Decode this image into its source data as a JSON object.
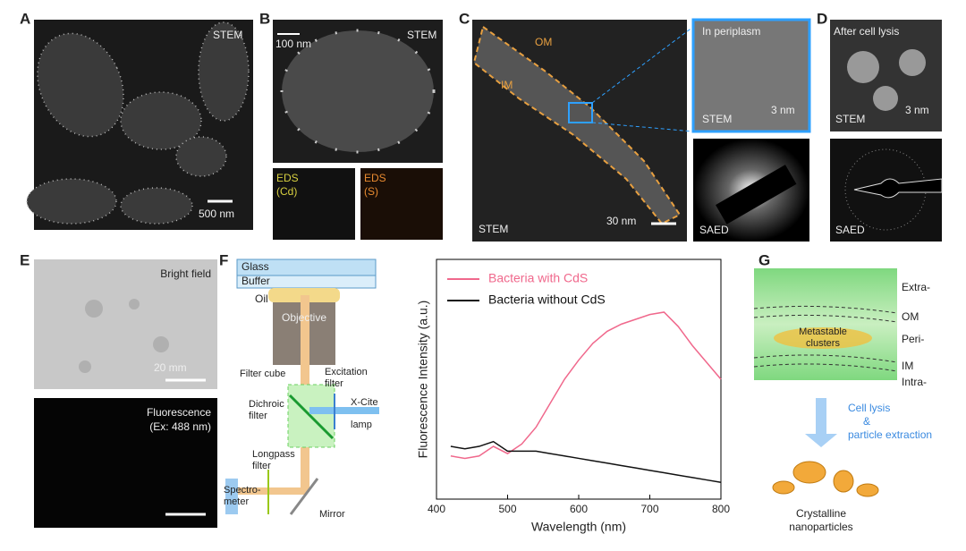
{
  "panel_a": {
    "label": "A",
    "modality": "STEM",
    "scale_bar": "500 nm"
  },
  "panel_b": {
    "label": "B",
    "modality": "STEM",
    "scale_bar": "100 nm",
    "eds_cd": [
      "EDS",
      "(Cd)"
    ],
    "eds_s": [
      "EDS",
      "(S)"
    ]
  },
  "panel_c": {
    "label": "C",
    "modality": "STEM",
    "om": "OM",
    "im": "IM",
    "scale_bar": "30 nm",
    "inset_title": "In periplasm",
    "inset_modality": "STEM",
    "inset_scale_bar": "3 nm",
    "saed": "SAED"
  },
  "panel_d": {
    "label": "D",
    "title": "After cell lysis",
    "modality": "STEM",
    "scale_bar": "3 nm",
    "saed": "SAED"
  },
  "panel_e": {
    "label": "E",
    "bright_field": "Bright field",
    "scale_bar": "20 mm",
    "fluorescence": [
      "Fluorescence",
      "(Ex: 488 nm)"
    ]
  },
  "panel_f": {
    "label": "F",
    "diagram": {
      "glass": "Glass",
      "buffer": "Buffer",
      "oil": "Oil",
      "objective": "Objective",
      "filter_cube": "Filter cube",
      "excitation_filter": [
        "Excitation",
        "filter"
      ],
      "dichroic_filter": [
        "Dichroic",
        "filter"
      ],
      "lamp": [
        "X-Cite",
        "lamp"
      ],
      "longpass_filter": [
        "Longpass",
        "filter"
      ],
      "spectrometer": [
        "Spectro-",
        "meter"
      ],
      "mirror": "Mirror"
    },
    "spectrum": {
      "type": "line",
      "xlabel": "Wavelength (nm)",
      "ylabel": "Fluorescence Intensity (a.u.)",
      "x": [
        420,
        440,
        460,
        480,
        500,
        520,
        540,
        560,
        580,
        600,
        620,
        640,
        660,
        680,
        700,
        720,
        740,
        760,
        780,
        800
      ],
      "series": [
        {
          "name": "Bacteria with CdS",
          "color": "#f0688c",
          "values": [
            0.18,
            0.17,
            0.18,
            0.22,
            0.19,
            0.23,
            0.3,
            0.4,
            0.5,
            0.58,
            0.65,
            0.7,
            0.73,
            0.75,
            0.77,
            0.78,
            0.72,
            0.64,
            0.57,
            0.5
          ]
        },
        {
          "name": "Bacteria without CdS",
          "color": "#111111",
          "values": [
            0.22,
            0.21,
            0.22,
            0.24,
            0.2,
            0.2,
            0.2,
            0.19,
            0.18,
            0.17,
            0.16,
            0.15,
            0.14,
            0.13,
            0.12,
            0.11,
            0.1,
            0.09,
            0.08,
            0.07
          ]
        }
      ],
      "xlim": [
        400,
        800
      ],
      "xticks": [
        400,
        500,
        600,
        700,
        800
      ],
      "ylim": [
        0,
        1
      ]
    }
  },
  "panel_g": {
    "label": "G",
    "extra": "Extra-",
    "om": "OM",
    "peri": "Peri-",
    "im": "IM",
    "intra": "Intra-",
    "clusters": [
      "Metastable",
      "clusters"
    ],
    "process": [
      "Cell lysis",
      "&",
      "particle extraction"
    ],
    "product": [
      "Crystalline",
      "nanoparticles"
    ]
  }
}
